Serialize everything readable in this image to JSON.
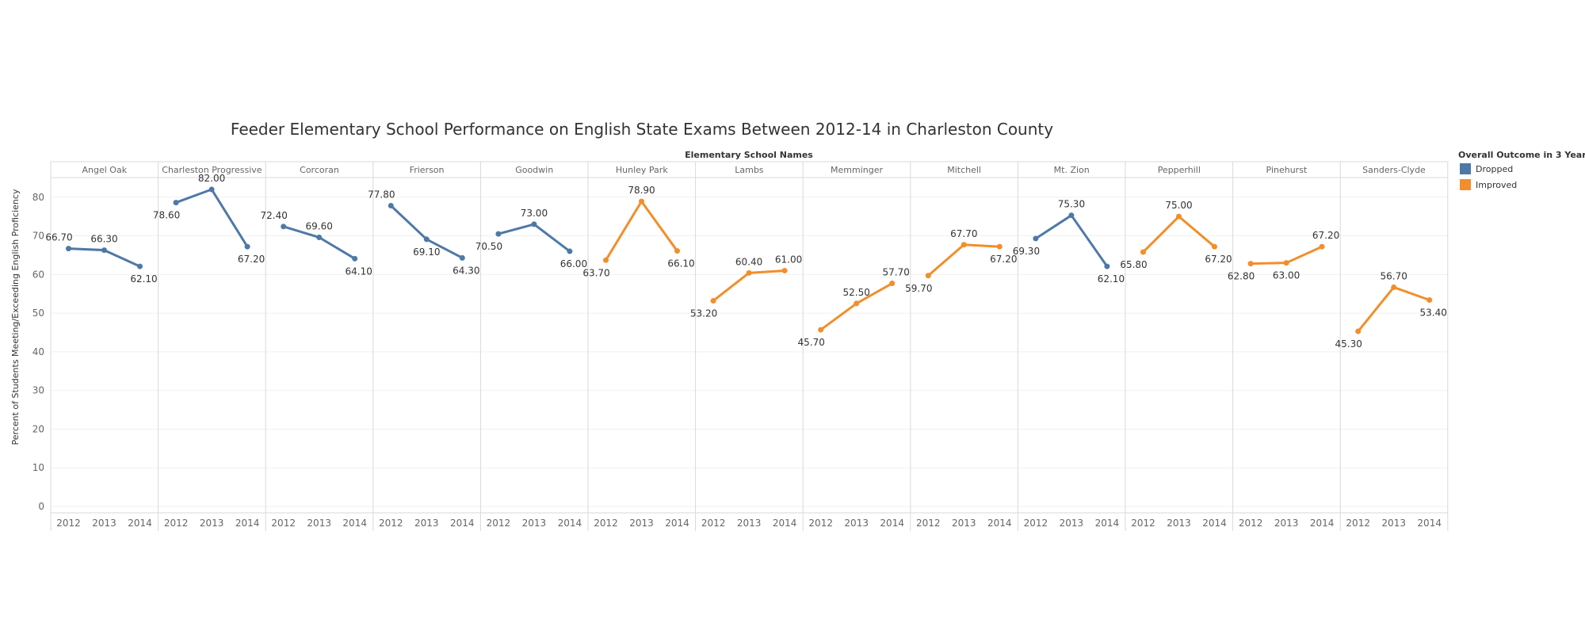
{
  "chart_data": {
    "type": "line",
    "title": "Feeder Elementary School Performance on English State Exams Between 2012-14 in Charleston County",
    "column_header": "Elementary School Names",
    "ylabel": "Percent of Students Meeting/Exceeding English Proficiency",
    "xlabel": "",
    "ylim": [
      0,
      86
    ],
    "yticks": [
      "0",
      "10",
      "20",
      "30",
      "40",
      "50",
      "60",
      "70",
      "80"
    ],
    "x": [
      "2012",
      "2013",
      "2014"
    ],
    "legend": {
      "title": "Overall Outcome in 3 Years",
      "placement": "top-right",
      "items": [
        {
          "label": "Dropped",
          "color": "#4e79a7"
        },
        {
          "label": "Improved",
          "color": "#f28e2b"
        }
      ]
    },
    "grid": "horizontal",
    "series": [
      {
        "name": "Angel Oak",
        "outcome": "Dropped",
        "values": [
          66.7,
          66.3,
          62.1
        ],
        "labels": [
          "66.70",
          "66.30",
          "62.10"
        ]
      },
      {
        "name": "Charleston Progressive",
        "outcome": "Dropped",
        "values": [
          78.6,
          82.0,
          67.2
        ],
        "labels": [
          "78.60",
          "82.00",
          "67.20"
        ]
      },
      {
        "name": "Corcoran",
        "outcome": "Dropped",
        "values": [
          72.4,
          69.6,
          64.1
        ],
        "labels": [
          "72.40",
          "69.60",
          "64.10"
        ]
      },
      {
        "name": "Frierson",
        "outcome": "Dropped",
        "values": [
          77.8,
          69.1,
          64.3
        ],
        "labels": [
          "77.80",
          "69.10",
          "64.30"
        ]
      },
      {
        "name": "Goodwin",
        "outcome": "Dropped",
        "values": [
          70.5,
          73.0,
          66.0
        ],
        "labels": [
          "70.50",
          "73.00",
          "66.00"
        ]
      },
      {
        "name": "Hunley Park",
        "outcome": "Improved",
        "values": [
          63.7,
          78.9,
          66.1
        ],
        "labels": [
          "63.70",
          "78.90",
          "66.10"
        ]
      },
      {
        "name": "Lambs",
        "outcome": "Improved",
        "values": [
          53.2,
          60.4,
          61.0
        ],
        "labels": [
          "53.20",
          "60.40",
          "61.00"
        ]
      },
      {
        "name": "Memminger",
        "outcome": "Improved",
        "values": [
          45.7,
          52.5,
          57.7
        ],
        "labels": [
          "45.70",
          "52.50",
          "57.70"
        ]
      },
      {
        "name": "Mitchell",
        "outcome": "Improved",
        "values": [
          59.7,
          67.7,
          67.2
        ],
        "labels": [
          "59.70",
          "67.70",
          "67.20"
        ]
      },
      {
        "name": "Mt. Zion",
        "outcome": "Dropped",
        "values": [
          69.3,
          75.3,
          62.1
        ],
        "labels": [
          "69.30",
          "75.30",
          "62.10"
        ]
      },
      {
        "name": "Pepperhill",
        "outcome": "Improved",
        "values": [
          65.8,
          75.0,
          67.2
        ],
        "labels": [
          "65.80",
          "75.00",
          "67.20"
        ]
      },
      {
        "name": "Pinehurst",
        "outcome": "Improved",
        "values": [
          62.8,
          63.0,
          67.2
        ],
        "labels": [
          "62.80",
          "63.00",
          "67.20"
        ]
      },
      {
        "name": "Sanders-Clyde",
        "outcome": "Improved",
        "values": [
          45.3,
          56.7,
          53.4
        ],
        "labels": [
          "45.30",
          "56.70",
          "53.40"
        ]
      }
    ]
  }
}
